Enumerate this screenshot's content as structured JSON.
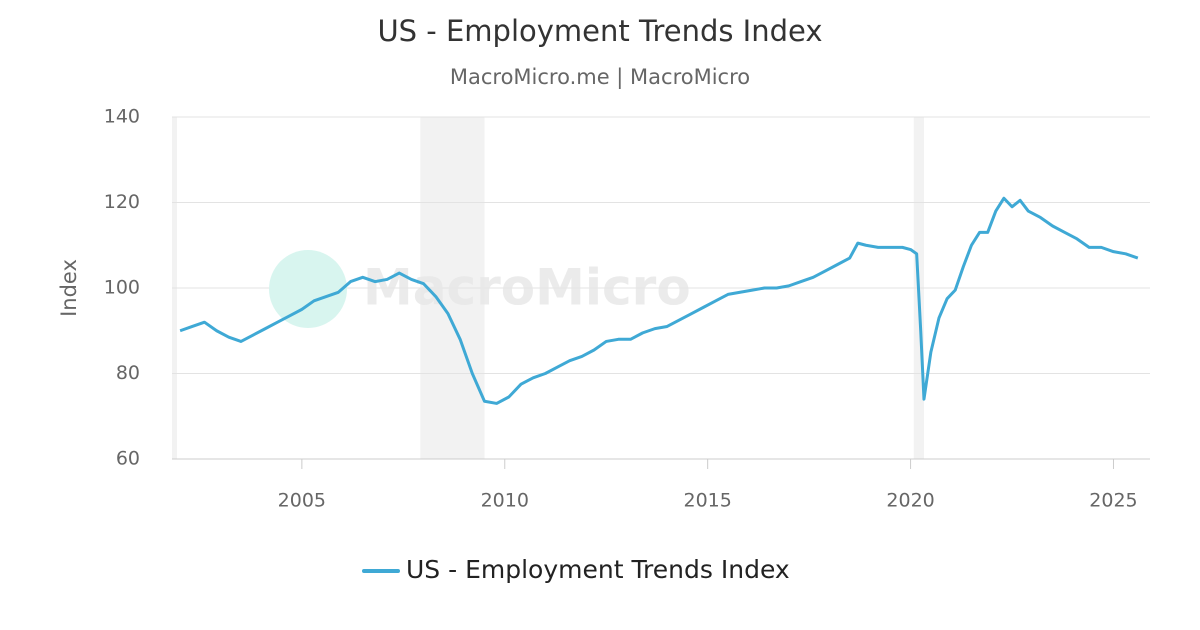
{
  "chart_data": {
    "type": "line",
    "title": "US - Employment Trends Index",
    "subtitle": "MacroMicro.me | MacroMicro",
    "y_label": "Index",
    "watermark": "MacroMicro",
    "x": [
      2002.0,
      2002.3,
      2002.6,
      2002.9,
      2003.2,
      2003.5,
      2003.8,
      2004.1,
      2004.4,
      2004.7,
      2005.0,
      2005.3,
      2005.6,
      2005.9,
      2006.2,
      2006.5,
      2006.8,
      2007.1,
      2007.4,
      2007.7,
      2008.0,
      2008.3,
      2008.6,
      2008.9,
      2009.2,
      2009.5,
      2009.8,
      2010.1,
      2010.4,
      2010.7,
      2011.0,
      2011.3,
      2011.6,
      2011.9,
      2012.2,
      2012.5,
      2012.8,
      2013.1,
      2013.4,
      2013.7,
      2014.0,
      2014.3,
      2014.6,
      2014.9,
      2015.2,
      2015.5,
      2015.8,
      2016.1,
      2016.4,
      2016.7,
      2017.0,
      2017.3,
      2017.6,
      2017.9,
      2018.2,
      2018.5,
      2018.7,
      2018.9,
      2019.2,
      2019.5,
      2019.8,
      2020.0,
      2020.15,
      2020.25,
      2020.33,
      2020.5,
      2020.7,
      2020.9,
      2021.1,
      2021.3,
      2021.5,
      2021.7,
      2021.9,
      2022.1,
      2022.3,
      2022.5,
      2022.7,
      2022.9,
      2023.2,
      2023.5,
      2023.8,
      2024.1,
      2024.4,
      2024.7,
      2025.0,
      2025.3,
      2025.6
    ],
    "series": [
      {
        "name": "US - Employment Trends Index",
        "color": "#3fa9d5",
        "values": [
          90,
          91,
          92,
          90,
          88.5,
          87.5,
          89,
          90.5,
          92,
          93.5,
          95,
          97,
          98,
          99,
          101.5,
          102.5,
          101.5,
          102,
          103.5,
          102,
          101,
          98,
          94,
          88,
          80,
          73.5,
          73,
          74.5,
          77.5,
          79,
          80,
          81.5,
          83,
          84,
          85.5,
          87.5,
          88,
          88,
          89.5,
          90.5,
          91,
          92.5,
          94,
          95.5,
          97,
          98.5,
          99,
          99.5,
          100,
          100,
          100.5,
          101.5,
          102.5,
          104,
          105.5,
          107,
          110.5,
          110,
          109.5,
          109.5,
          109.5,
          109,
          108,
          90,
          74,
          85,
          93,
          97.5,
          99.5,
          105,
          110,
          113,
          113,
          118,
          121,
          119,
          120.5,
          118,
          116.5,
          114.5,
          113,
          111.5,
          109.5,
          109.5,
          108.5,
          108,
          107
        ]
      }
    ],
    "xlim": [
      2001.8,
      2025.9
    ],
    "xticks": [
      2005,
      2010,
      2015,
      2020,
      2025
    ],
    "ylim": [
      60,
      140
    ],
    "yticks": [
      60,
      80,
      100,
      120,
      140
    ],
    "recessions": [
      [
        2007.92,
        2009.5
      ],
      [
        2020.08,
        2020.33
      ]
    ],
    "grid": true,
    "legend": "bottom"
  }
}
